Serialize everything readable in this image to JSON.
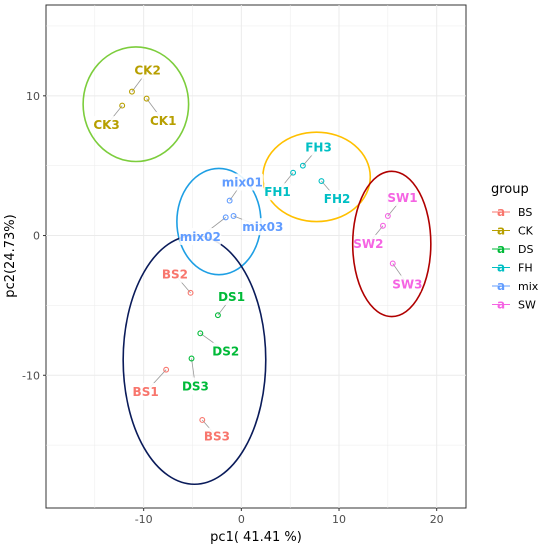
{
  "chart_data": {
    "type": "scatter",
    "xlabel": "pc1( 41.41 %)",
    "ylabel": "pc2(24.73%)",
    "xlim": [
      -20,
      23
    ],
    "ylim": [
      -19.5,
      16.5
    ],
    "x_ticks": [
      -10,
      0,
      10,
      20
    ],
    "y_ticks": [
      -10,
      0,
      10
    ],
    "x_tick_labels": [
      "-10",
      "0",
      "10",
      "20"
    ],
    "y_tick_labels": [
      "-10",
      "0",
      "10"
    ],
    "grid": true,
    "legend": {
      "title": "group",
      "position": "right",
      "glyph": "a",
      "entries": [
        {
          "name": "BS",
          "color": "#F8766D"
        },
        {
          "name": "CK",
          "color": "#B79F00"
        },
        {
          "name": "DS",
          "color": "#00BA38"
        },
        {
          "name": "FH",
          "color": "#00BFC4"
        },
        {
          "name": "mix",
          "color": "#619CFF"
        },
        {
          "name": "SW",
          "color": "#F564E3"
        }
      ]
    },
    "series": [
      {
        "name": "BS",
        "color": "#F8766D",
        "points": [
          {
            "label": "BS1",
            "x": -7.7,
            "y": -9.6,
            "lx": -9.8,
            "ly": -11.2
          },
          {
            "label": "BS2",
            "x": -5.2,
            "y": -4.1,
            "lx": -6.8,
            "ly": -2.8
          },
          {
            "label": "BS3",
            "x": -4.0,
            "y": -13.2,
            "lx": -2.5,
            "ly": -14.4
          }
        ]
      },
      {
        "name": "CK",
        "color": "#B79F00",
        "points": [
          {
            "label": "CK1",
            "x": -9.7,
            "y": 9.8,
            "lx": -8.0,
            "ly": 8.2
          },
          {
            "label": "CK2",
            "x": -11.2,
            "y": 10.3,
            "lx": -9.6,
            "ly": 11.8
          },
          {
            "label": "CK3",
            "x": -12.2,
            "y": 9.3,
            "lx": -13.8,
            "ly": 7.9
          }
        ]
      },
      {
        "name": "DS",
        "color": "#00BA38",
        "points": [
          {
            "label": "DS1",
            "x": -2.4,
            "y": -5.7,
            "lx": -1.0,
            "ly": -4.4
          },
          {
            "label": "DS2",
            "x": -4.2,
            "y": -7.0,
            "lx": -1.6,
            "ly": -8.3
          },
          {
            "label": "DS3",
            "x": -5.1,
            "y": -8.8,
            "lx": -4.7,
            "ly": -10.8
          }
        ]
      },
      {
        "name": "FH",
        "color": "#00BFC4",
        "points": [
          {
            "label": "FH1",
            "x": 5.3,
            "y": 4.5,
            "lx": 3.7,
            "ly": 3.1
          },
          {
            "label": "FH2",
            "x": 8.2,
            "y": 3.9,
            "lx": 9.8,
            "ly": 2.6
          },
          {
            "label": "FH3",
            "x": 6.3,
            "y": 5.0,
            "lx": 7.9,
            "ly": 6.3
          }
        ]
      },
      {
        "name": "mix",
        "color": "#619CFF",
        "points": [
          {
            "label": "mix01",
            "x": -1.2,
            "y": 2.5,
            "lx": 0.1,
            "ly": 3.8
          },
          {
            "label": "mix02",
            "x": -1.6,
            "y": 1.3,
            "lx": -4.2,
            "ly": -0.1
          },
          {
            "label": "mix03",
            "x": -0.8,
            "y": 1.4,
            "lx": 2.2,
            "ly": 0.6
          }
        ]
      },
      {
        "name": "SW",
        "color": "#F564E3",
        "points": [
          {
            "label": "SW1",
            "x": 15.0,
            "y": 1.4,
            "lx": 16.5,
            "ly": 2.7
          },
          {
            "label": "SW2",
            "x": 14.5,
            "y": 0.7,
            "lx": 13.0,
            "ly": -0.6
          },
          {
            "label": "SW3",
            "x": 15.5,
            "y": -2.0,
            "lx": 17.0,
            "ly": -3.5
          }
        ]
      }
    ],
    "ellipses": [
      {
        "group": "CK",
        "color": "#7CCD3C",
        "cx": -10.8,
        "cy": 9.4,
        "rx": 5.4,
        "ry": 4.1
      },
      {
        "group": "FH",
        "color": "#FFC000",
        "cx": 7.7,
        "cy": 4.2,
        "rx": 5.5,
        "ry": 3.2
      },
      {
        "group": "mix",
        "color": "#1E9FE4",
        "cx": -2.3,
        "cy": 1.0,
        "rx": 4.3,
        "ry": 3.8
      },
      {
        "group": "SW",
        "color": "#B00000",
        "cx": 15.4,
        "cy": -0.6,
        "rx": 4.0,
        "ry": 5.2
      },
      {
        "group": "BS-DS",
        "color": "#0A1B5A",
        "cx": -4.8,
        "cy": -8.9,
        "rx": 7.3,
        "ry": 8.9
      }
    ]
  }
}
